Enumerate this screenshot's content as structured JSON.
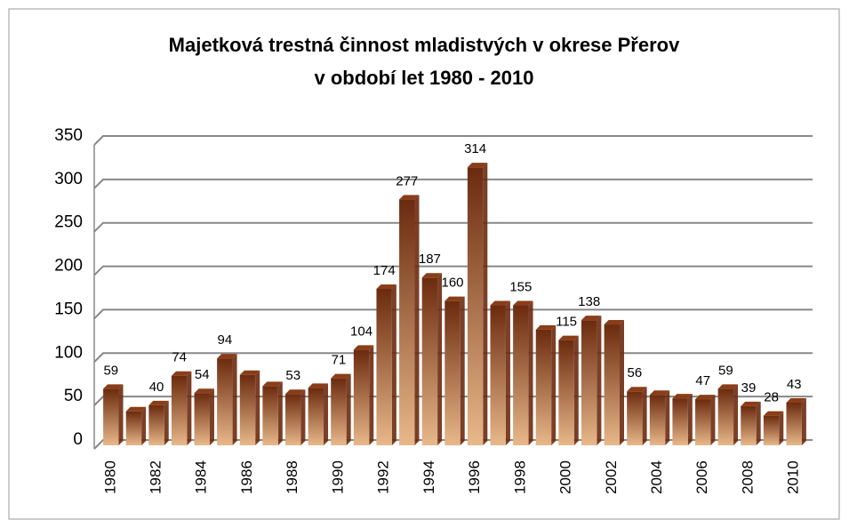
{
  "chart_data": {
    "type": "bar",
    "title": [
      "Majetková trestná činnost mladistvých v okrese Přerov",
      "v období let 1980 - 2010"
    ],
    "categories": [
      "1980",
      null,
      "1982",
      null,
      "1984",
      null,
      "1986",
      null,
      "1988",
      null,
      "1990",
      null,
      "1992",
      null,
      "1994",
      null,
      "1996",
      null,
      "1998",
      null,
      "2000",
      null,
      "2002",
      null,
      "2004",
      null,
      "2006",
      null,
      "2008",
      null,
      "2010"
    ],
    "values": [
      59,
      33,
      40,
      74,
      54,
      94,
      75,
      62,
      53,
      60,
      71,
      104,
      174,
      277,
      187,
      160,
      314,
      155,
      155,
      127,
      115,
      138,
      133,
      56,
      52,
      48,
      47,
      59,
      39,
      28,
      43
    ],
    "value_labels": [
      "59",
      null,
      "40",
      "74",
      "54",
      "94",
      null,
      null,
      "53",
      null,
      "71",
      "104",
      "174",
      "277",
      "187",
      "160",
      "314",
      null,
      "155",
      null,
      "115",
      "138",
      null,
      "56",
      null,
      null,
      "47",
      "59",
      "39",
      "28",
      "43"
    ],
    "color": [
      "#6b2a0e",
      "#e8b88a"
    ],
    "ylim": [
      0,
      350
    ],
    "yticks": [
      0,
      50,
      100,
      150,
      200,
      250,
      300,
      350
    ],
    "grid": true
  }
}
